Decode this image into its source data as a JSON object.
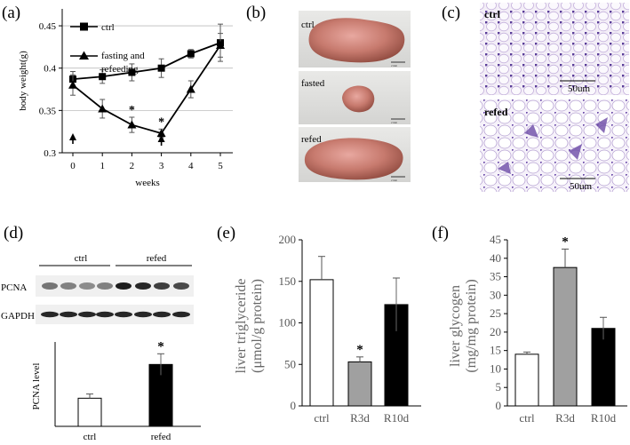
{
  "panels": {
    "a": {
      "label": "(a)"
    },
    "b": {
      "label": "(b)",
      "images": [
        {
          "label": "ctrl",
          "scale": "2 mm"
        },
        {
          "label": "fasted",
          "scale": "2 mm"
        },
        {
          "label": "refed",
          "scale": "2 mm"
        }
      ]
    },
    "c": {
      "label": "(c)",
      "images": [
        {
          "label": "ctrl",
          "scale": "50um"
        },
        {
          "label": "refed",
          "scale": "50um"
        }
      ]
    },
    "d": {
      "label": "(d)",
      "blot": {
        "group1": "ctrl",
        "group2": "refed",
        "row1": "PCNA",
        "row2": "GAPDH"
      }
    },
    "e": {
      "label": "(e)"
    },
    "f": {
      "label": "(f)"
    }
  },
  "chart_data": [
    {
      "id": "a",
      "type": "line",
      "xlabel": "weeks",
      "ylabel": "body weight(g)",
      "x": [
        0,
        1,
        2,
        3,
        4,
        5
      ],
      "ylim": [
        0.3,
        0.47
      ],
      "yticks": [
        "0.3",
        "0.35",
        "0.4",
        "0.45"
      ],
      "series": [
        {
          "name": "ctrl",
          "marker": "square",
          "x": [
            0,
            1,
            2,
            3,
            4,
            5
          ],
          "values": [
            0.387,
            0.39,
            0.395,
            0.4,
            0.417,
            0.43
          ],
          "errors": [
            0.009,
            0.008,
            0.01,
            0.011,
            0.005,
            0.022
          ]
        },
        {
          "name": "fasting and refeeding",
          "marker": "triangle",
          "x": [
            0,
            1,
            2,
            3,
            4,
            5
          ],
          "values": [
            0.38,
            0.352,
            0.333,
            0.323,
            0.375,
            0.427
          ],
          "errors": [
            0.012,
            0.011,
            0.009,
            0.005,
            0.01,
            0.014
          ]
        }
      ],
      "significance": [
        {
          "x": 2,
          "label": "*"
        },
        {
          "x": 3,
          "label": "*"
        }
      ],
      "arrows_at_x": [
        0,
        3
      ]
    },
    {
      "id": "d",
      "type": "bar",
      "ylabel": "PCNA level",
      "categories": [
        "ctrl",
        "refed"
      ],
      "values": [
        1.0,
        2.2
      ],
      "errors": [
        0.15,
        0.38
      ],
      "colors": [
        "#ffffff",
        "#000000"
      ],
      "ylim": [
        0,
        3
      ],
      "significance": [
        "",
        "*"
      ]
    },
    {
      "id": "e",
      "type": "bar",
      "ylabel": "liver triglyceride",
      "ylabel2": "(μmol/g protein)",
      "categories": [
        "ctrl",
        "R3d",
        "R10d"
      ],
      "values": [
        152,
        53,
        122
      ],
      "errors": [
        28,
        6,
        32
      ],
      "colors": [
        "#ffffff",
        "#a0a0a0",
        "#000000"
      ],
      "ylim": [
        0,
        200
      ],
      "yticks": [
        "0",
        "50",
        "100",
        "150",
        "200"
      ],
      "significance": [
        "",
        "*",
        ""
      ]
    },
    {
      "id": "f",
      "type": "bar",
      "ylabel": "liver glycogen",
      "ylabel2": "(mg/mg protein)",
      "categories": [
        "ctrl",
        "R3d",
        "R10d"
      ],
      "values": [
        14,
        37.5,
        21
      ],
      "errors": [
        0.6,
        5,
        3
      ],
      "colors": [
        "#ffffff",
        "#a0a0a0",
        "#000000"
      ],
      "ylim": [
        0,
        45
      ],
      "yticks": [
        "0",
        "5",
        "10",
        "15",
        "20",
        "25",
        "30",
        "35",
        "40",
        "45"
      ],
      "significance": [
        "",
        "*",
        ""
      ]
    }
  ]
}
